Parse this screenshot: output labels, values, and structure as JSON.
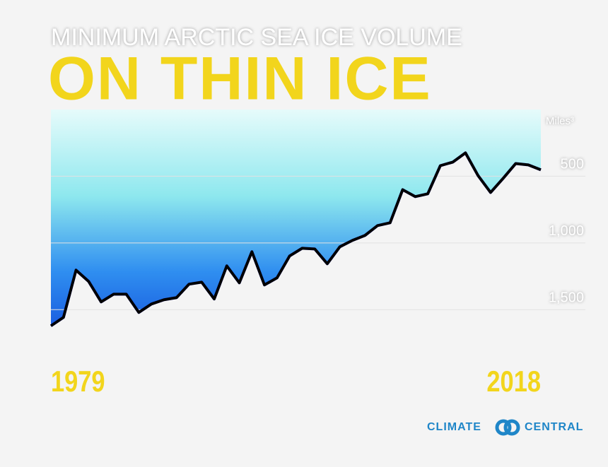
{
  "chart_data": {
    "type": "area-line",
    "subtitle": "MINIMUM ARCTIC SEA ICE VOLUME",
    "title": "ON THIN ICE",
    "y_label": "Miles³",
    "x": [
      1979,
      1980,
      1981,
      1982,
      1983,
      1984,
      1985,
      1986,
      1987,
      1988,
      1989,
      1990,
      1991,
      1992,
      1993,
      1994,
      1995,
      1996,
      1997,
      1998,
      1999,
      2000,
      2001,
      2002,
      2003,
      2004,
      2005,
      2006,
      2007,
      2008,
      2009,
      2010,
      2011,
      2012,
      2013,
      2014,
      2015,
      2016,
      2017,
      2018
    ],
    "values": [
      1622,
      1558,
      1204,
      1288,
      1442,
      1384,
      1384,
      1521,
      1458,
      1426,
      1410,
      1309,
      1294,
      1420,
      1172,
      1299,
      1066,
      1315,
      1262,
      1098,
      1040,
      1045,
      1156,
      1029,
      981,
      944,
      870,
      849,
      601,
      653,
      632,
      421,
      394,
      325,
      495,
      622,
      516,
      405,
      415,
      452
    ],
    "color": "#000000",
    "xlim": [
      1979,
      2018
    ],
    "xticks": [
      1979,
      2018
    ],
    "ylim": [
      0,
      1700
    ],
    "y_inverted": true,
    "yticks": [
      500,
      {
        "value": 1000,
        "label": "1,000"
      },
      {
        "value": 1500,
        "label": "1,500"
      }
    ],
    "grid": true,
    "logo_text": [
      "CLIMATE",
      "CENTRAL"
    ]
  }
}
